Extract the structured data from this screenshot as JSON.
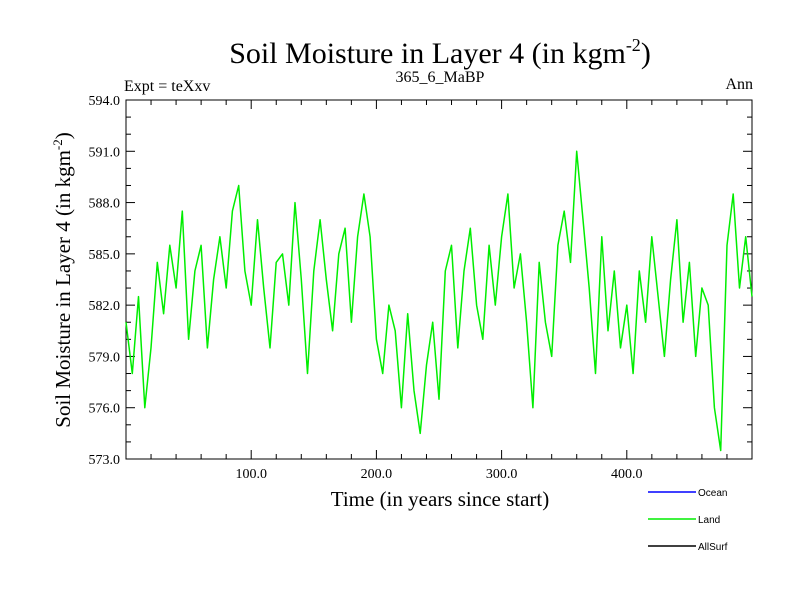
{
  "chart_data": {
    "type": "line",
    "title": "Soil Moisture in Layer 4 (in kgm",
    "title_sup": "-2",
    "title_close": ")",
    "left_label": "Expt = teXxv",
    "center_label": "365_6_MaBP",
    "right_label": "Ann",
    "xlabel": "Time (in years since start)",
    "ylabel": "Soil Moisture in Layer 4 (in kgm",
    "ylabel_sup": "-2",
    "ylabel_close": ")",
    "xlim": [
      0,
      500
    ],
    "ylim": [
      573.0,
      594.0
    ],
    "x_ticks": [
      {
        "value": 100,
        "label": "100.0"
      },
      {
        "value": 200,
        "label": "200.0"
      },
      {
        "value": 300,
        "label": "300.0"
      },
      {
        "value": 400,
        "label": "400.0"
      }
    ],
    "y_ticks": [
      {
        "value": 573.0,
        "label": "573.0"
      },
      {
        "value": 576.0,
        "label": "576.0"
      },
      {
        "value": 579.0,
        "label": "579.0"
      },
      {
        "value": 582.0,
        "label": "582.0"
      },
      {
        "value": 585.0,
        "label": "585.0"
      },
      {
        "value": 588.0,
        "label": "588.0"
      },
      {
        "value": 591.0,
        "label": "591.0"
      },
      {
        "value": 594.0,
        "label": "594.0"
      }
    ],
    "legend": [
      {
        "name": "Ocean",
        "color": "#0000ff"
      },
      {
        "name": "Land",
        "color": "#00ee00"
      },
      {
        "name": "AllSurf",
        "color": "#000000"
      }
    ],
    "series": [
      {
        "name": "Land",
        "color": "#00ee00",
        "x": [
          0,
          5,
          10,
          15,
          20,
          25,
          30,
          35,
          40,
          45,
          50,
          55,
          60,
          65,
          70,
          75,
          80,
          85,
          90,
          95,
          100,
          105,
          110,
          115,
          120,
          125,
          130,
          135,
          140,
          145,
          150,
          155,
          160,
          165,
          170,
          175,
          180,
          185,
          190,
          195,
          200,
          205,
          210,
          215,
          220,
          225,
          230,
          235,
          240,
          245,
          250,
          255,
          260,
          265,
          270,
          275,
          280,
          285,
          290,
          295,
          300,
          305,
          310,
          315,
          320,
          325,
          330,
          335,
          340,
          345,
          350,
          355,
          360,
          365,
          370,
          375,
          380,
          385,
          390,
          395,
          400,
          405,
          410,
          415,
          420,
          425,
          430,
          435,
          440,
          445,
          450,
          455,
          460,
          465,
          470,
          475,
          480,
          485,
          490,
          495,
          500
        ],
        "values": [
          581.0,
          578.0,
          582.5,
          576.0,
          579.5,
          584.5,
          581.5,
          585.5,
          583.0,
          587.5,
          580.0,
          584.0,
          585.5,
          579.5,
          583.5,
          586.0,
          583.0,
          587.5,
          589.0,
          584.0,
          582.0,
          587.0,
          583.0,
          579.5,
          584.5,
          585.0,
          582.0,
          588.0,
          583.5,
          578.0,
          584.0,
          587.0,
          583.5,
          580.5,
          585.0,
          586.5,
          581.0,
          586.0,
          588.5,
          586.0,
          580.0,
          578.0,
          582.0,
          580.5,
          576.0,
          581.5,
          577.0,
          574.5,
          578.5,
          581.0,
          576.5,
          584.0,
          585.5,
          579.5,
          584.0,
          586.5,
          582.0,
          580.0,
          585.5,
          582.0,
          586.0,
          588.5,
          583.0,
          585.0,
          581.0,
          576.0,
          584.5,
          581.0,
          579.0,
          585.5,
          587.5,
          584.5,
          591.0,
          587.0,
          583.0,
          578.0,
          586.0,
          580.5,
          584.0,
          579.5,
          582.0,
          578.0,
          584.0,
          581.0,
          586.0,
          582.5,
          579.0,
          583.5,
          587.0,
          581.0,
          584.5,
          579.0,
          583.0,
          582.0,
          576.0,
          573.5,
          585.5,
          588.5,
          583.0,
          586.0,
          582.5
        ]
      }
    ]
  }
}
